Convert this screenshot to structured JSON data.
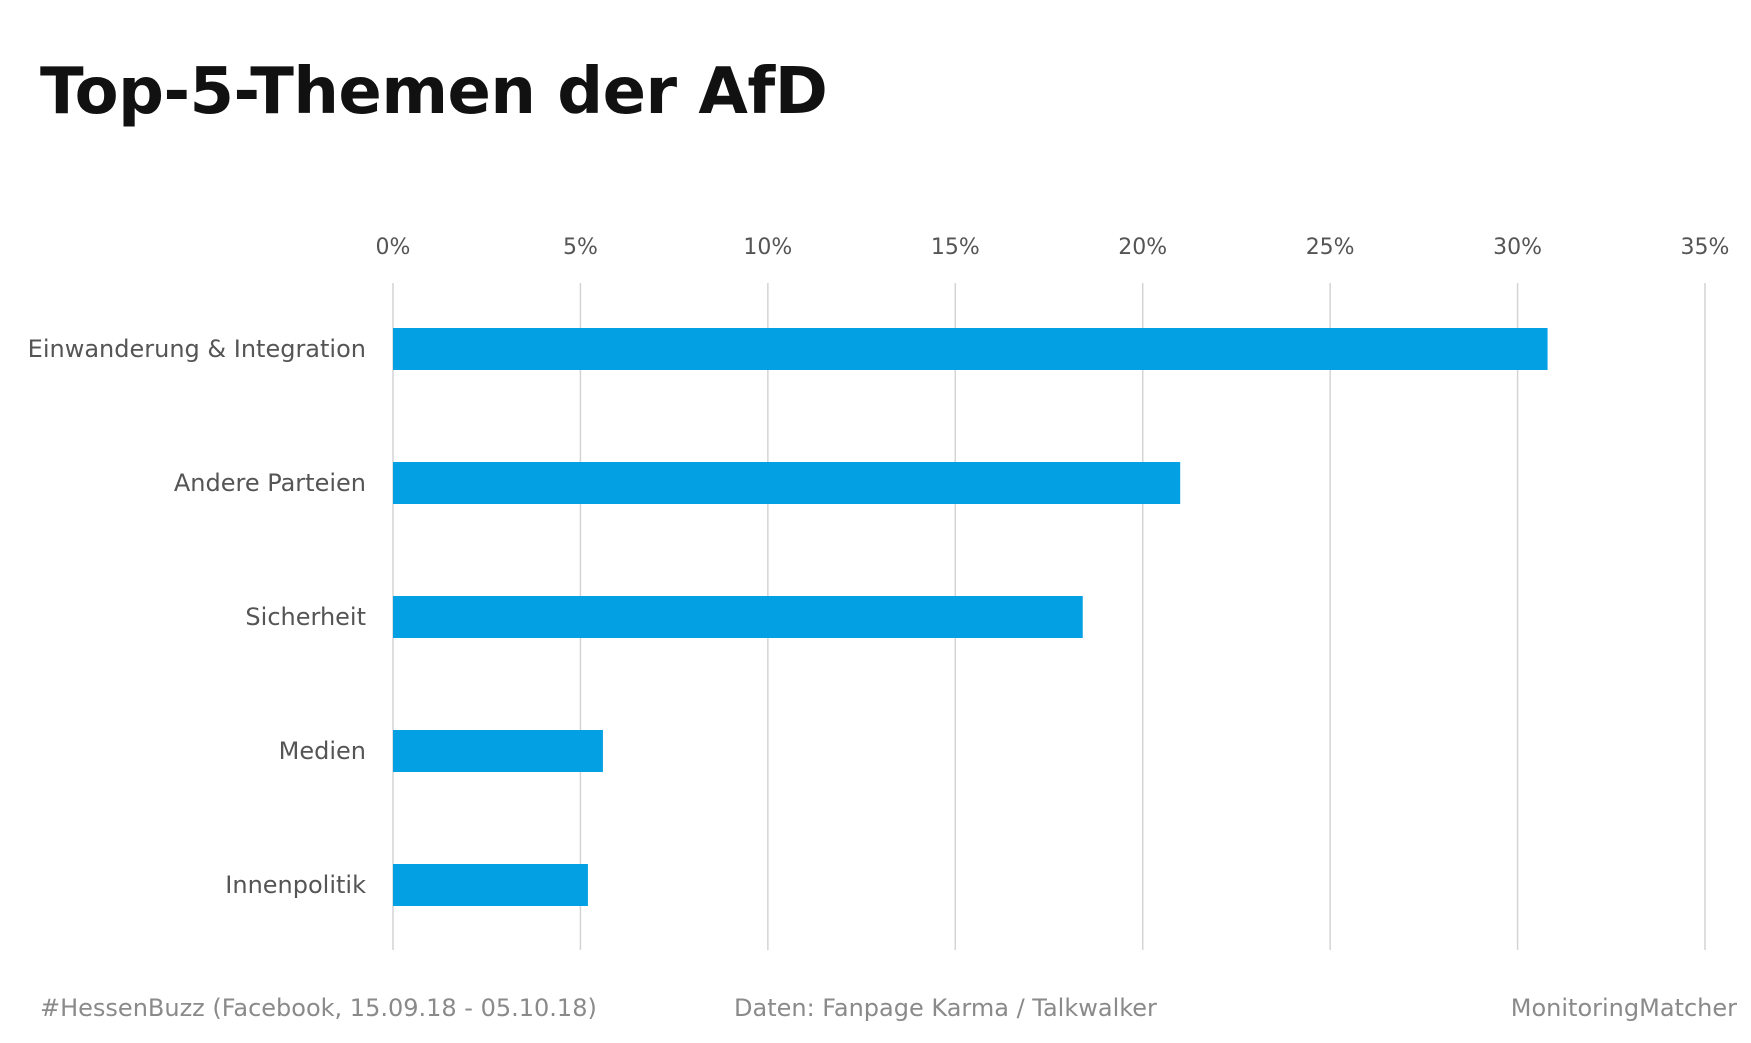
{
  "chart_data": {
    "type": "bar",
    "orientation": "horizontal",
    "title": "Top-5-Themen der AfD",
    "xlabel": "",
    "ylabel": "",
    "xlim": [
      0,
      35
    ],
    "x_ticks": [
      "0%",
      "5%",
      "10%",
      "15%",
      "20%",
      "25%",
      "30%",
      "35%"
    ],
    "x_tick_values": [
      0,
      5,
      10,
      15,
      20,
      25,
      30,
      35
    ],
    "categories": [
      "Einwanderung & Integration",
      "Andere Parteien",
      "Sicherheit",
      "Medien",
      "Innenpolitik"
    ],
    "values": [
      30.8,
      21.0,
      18.4,
      5.6,
      5.2
    ],
    "unit": "%",
    "bar_color": "#03a0e3",
    "grid": "vertical",
    "axis_position": "top"
  },
  "footer": {
    "left": "#HessenBuzz (Facebook, 15.09.18 - 05.10.18)",
    "center": "Daten: Fanpage Karma / Talkwalker",
    "right": "MonitoringMatcher"
  },
  "colors": {
    "bar": "#03a0e3",
    "gridline": "#d4d4d4",
    "text": "#555555",
    "footer_text": "#8a8a8a",
    "title": "#111111"
  }
}
